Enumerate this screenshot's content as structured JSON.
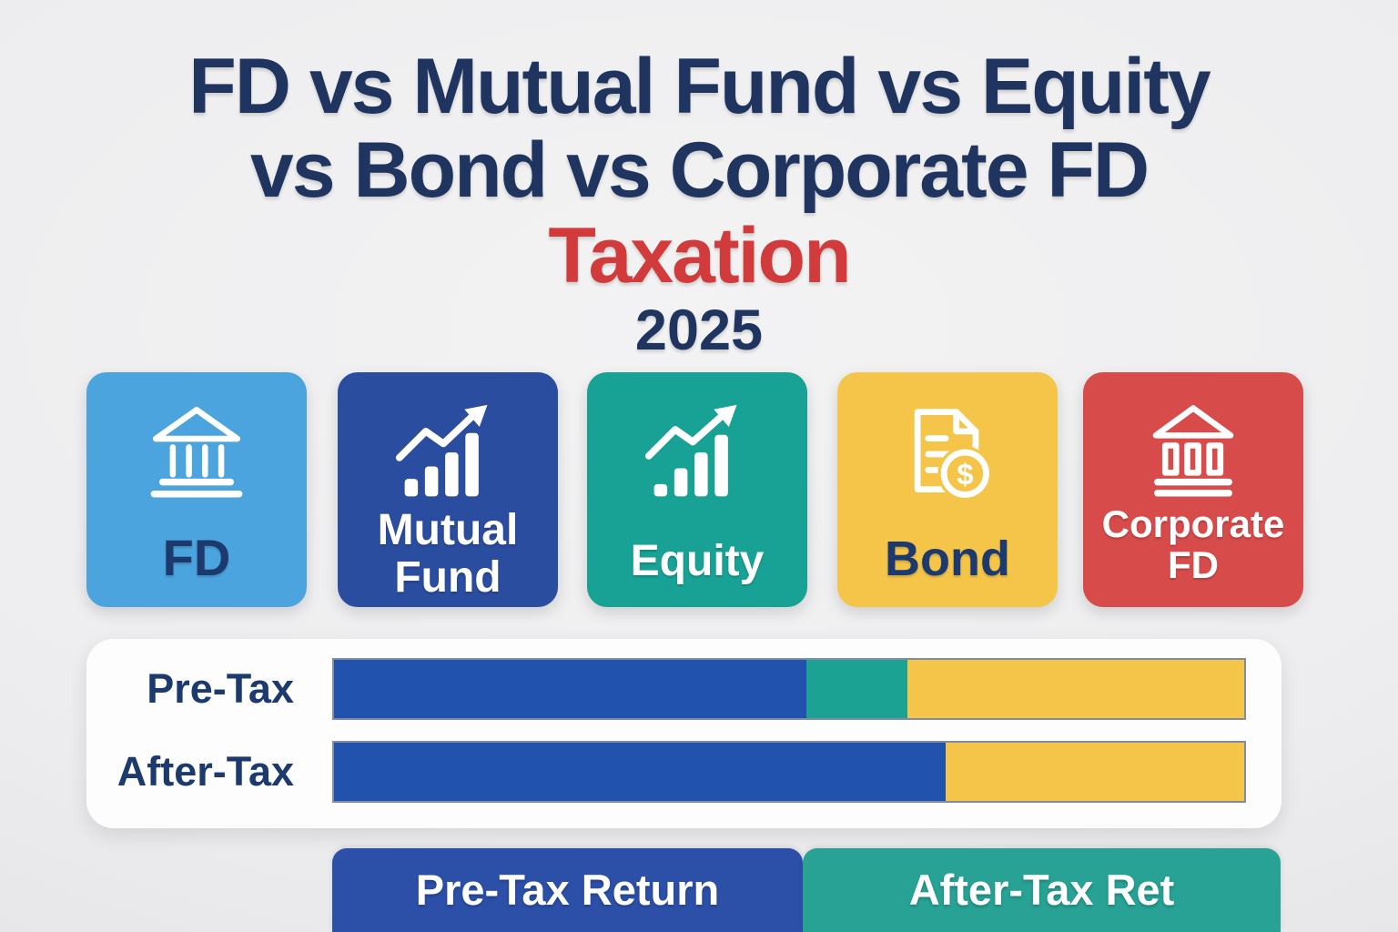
{
  "header": {
    "title_line1": "FD vs Mutual Fund vs Equity",
    "title_line2": "vs Bond vs Corporate FD",
    "subtitle": "Taxation",
    "year": "2025",
    "title_color": "#1f3560",
    "subtitle_color": "#d23b3c"
  },
  "cards": [
    {
      "label_lines": [
        "FD"
      ],
      "icon": "bank-icon",
      "color": "#4BA4DE",
      "label_color": "#1d3a6e"
    },
    {
      "label_lines": [
        "Mutual",
        "Fund"
      ],
      "icon": "growth-chart-icon",
      "color": "#2A4D9F",
      "label_color": "#FFFFFF"
    },
    {
      "label_lines": [
        "Equity"
      ],
      "icon": "growth-chart-icon",
      "color": "#18A295",
      "label_color": "#FFFFFF"
    },
    {
      "label_lines": [
        "Bond"
      ],
      "icon": "document-coin-icon",
      "color": "#F5C54A",
      "label_color": "#1d3a6e"
    },
    {
      "label_lines": [
        "Corporate",
        "FD"
      ],
      "icon": "bank-building-icon",
      "color": "#D74B4B",
      "label_color": "#FFFFFF"
    }
  ],
  "chart_data": {
    "type": "bar",
    "orientation": "horizontal-stacked",
    "title": "FD vs Mutual Fund vs Equity vs Bond vs Corporate FD Taxation 2025",
    "rows": [
      {
        "label": "Pre-Tax",
        "label_color": "#1d3a6e",
        "segments": [
          {
            "name": "blue",
            "color": "#2152AD",
            "pct": 51.9
          },
          {
            "name": "teal",
            "color": "#1CA293",
            "pct": 11.1
          },
          {
            "name": "yellow",
            "color": "#F5C54A",
            "pct": 37.0
          }
        ]
      },
      {
        "label": "After-Tax",
        "label_color": "#1d3a6e",
        "segments": [
          {
            "name": "blue",
            "color": "#2152AD",
            "pct": 67.2
          },
          {
            "name": "yellow",
            "color": "#F5C54A",
            "pct": 32.8
          }
        ]
      }
    ],
    "legend": [
      {
        "label": "Pre-Tax Return",
        "color": "#2C50A8",
        "label_color": "#FFFFFF"
      },
      {
        "label": "After-Tax Ret",
        "color": "#27A295",
        "label_color": "#FFFFFF"
      }
    ],
    "axis": "none",
    "grid": false
  }
}
